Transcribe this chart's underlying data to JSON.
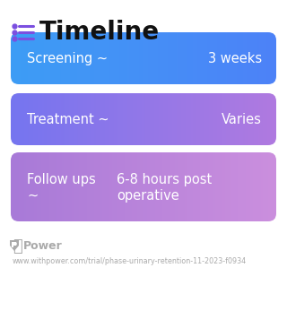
{
  "title": "Timeline",
  "title_fontsize": 20,
  "title_color": "#111111",
  "title_icon_color": "#7B4FE0",
  "background_color": "#ffffff",
  "rows": [
    {
      "label": "Screening ~",
      "value_text": "3 weeks",
      "color_left": "#3d9df5",
      "color_right": "#4d82f8",
      "text_color": "#ffffff",
      "fontsize": 10.5,
      "multiline": false
    },
    {
      "label": "Treatment ~",
      "value_text": "Varies",
      "color_left": "#7575f0",
      "color_right": "#b07ae0",
      "text_color": "#ffffff",
      "fontsize": 10.5,
      "multiline": false
    },
    {
      "label": "Follow ups\n~",
      "value_text": "6-8 hours post\noperative",
      "color_left": "#a87ad8",
      "color_right": "#cb8fde",
      "text_color": "#ffffff",
      "fontsize": 10.5,
      "multiline": true
    }
  ],
  "footer_logo_color": "#aaaaaa",
  "footer_text": "Power",
  "footer_url": "www.withpower.com/trial/phase-urinary-retention-11-2023-f0934",
  "footer_fontsize": 9,
  "footer_url_fontsize": 5.8
}
